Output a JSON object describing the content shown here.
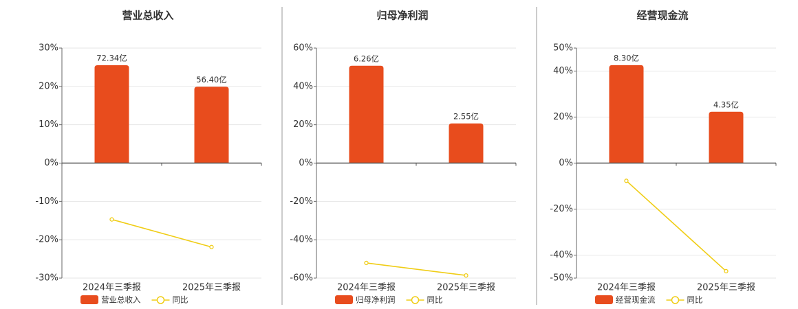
{
  "chart_data": [
    {
      "type": "bar",
      "title": "营业总收入",
      "categories": [
        "2024年三季报",
        "2025年三季报"
      ],
      "series": [
        {
          "name": "营业总收入",
          "type": "bar",
          "color": "#e84c1d",
          "values": [
            72.34,
            56.4
          ],
          "value_labels": [
            "72.34亿",
            "56.40亿"
          ],
          "axis": "y2"
        },
        {
          "name": "同比",
          "type": "line",
          "color": "#f0cd16",
          "values": [
            -14.7,
            -21.9
          ]
        }
      ],
      "ylim": [
        -30,
        30
      ],
      "yticks": [
        {
          "value": 30,
          "label": "30%"
        },
        {
          "value": 20,
          "label": "20%"
        },
        {
          "value": 10,
          "label": "10%"
        },
        {
          "value": 0,
          "label": "0%"
        },
        {
          "value": -10,
          "label": "-10%"
        },
        {
          "value": -20,
          "label": "-20%"
        },
        {
          "value": -30,
          "label": "-30%"
        }
      ],
      "y2lim": [
        -85,
        85
      ],
      "grid": true
    },
    {
      "type": "bar",
      "title": "归母净利润",
      "categories": [
        "2024年三季报",
        "2025年三季报"
      ],
      "series": [
        {
          "name": "归母净利润",
          "type": "bar",
          "color": "#e84c1d",
          "values": [
            6.26,
            2.55
          ],
          "value_labels": [
            "6.26亿",
            "2.55亿"
          ],
          "axis": "y2"
        },
        {
          "name": "同比",
          "type": "line",
          "color": "#f0cd16",
          "values": [
            -52.1,
            -58.6
          ]
        }
      ],
      "ylim": [
        -60,
        60
      ],
      "yticks": [
        {
          "value": 60,
          "label": "60%"
        },
        {
          "value": 40,
          "label": "40%"
        },
        {
          "value": 20,
          "label": "20%"
        },
        {
          "value": 0,
          "label": "0%"
        },
        {
          "value": -20,
          "label": "-20%"
        },
        {
          "value": -40,
          "label": "-40%"
        },
        {
          "value": -60,
          "label": "-60%"
        }
      ],
      "y2lim": [
        -7.4,
        7.4
      ],
      "grid": true
    },
    {
      "type": "bar",
      "title": "经营现金流",
      "categories": [
        "2024年三季报",
        "2025年三季报"
      ],
      "series": [
        {
          "name": "经营现金流",
          "type": "bar",
          "color": "#e84c1d",
          "values": [
            8.3,
            4.35
          ],
          "value_labels": [
            "8.30亿",
            "4.35亿"
          ],
          "axis": "y2"
        },
        {
          "name": "同比",
          "type": "line",
          "color": "#f0cd16",
          "values": [
            -7.7,
            -47.0
          ]
        }
      ],
      "ylim": [
        -50,
        50
      ],
      "yticks": [
        {
          "value": 50,
          "label": "50%"
        },
        {
          "value": 40,
          "label": "40%"
        },
        {
          "value": 20,
          "label": "20%"
        },
        {
          "value": 0,
          "label": "0%"
        },
        {
          "value": -20,
          "label": "-20%"
        },
        {
          "value": -40,
          "label": "-40%"
        },
        {
          "value": -50,
          "label": "-50%"
        }
      ],
      "y2lim": [
        -9.75,
        9.75
      ],
      "grid": true
    }
  ]
}
